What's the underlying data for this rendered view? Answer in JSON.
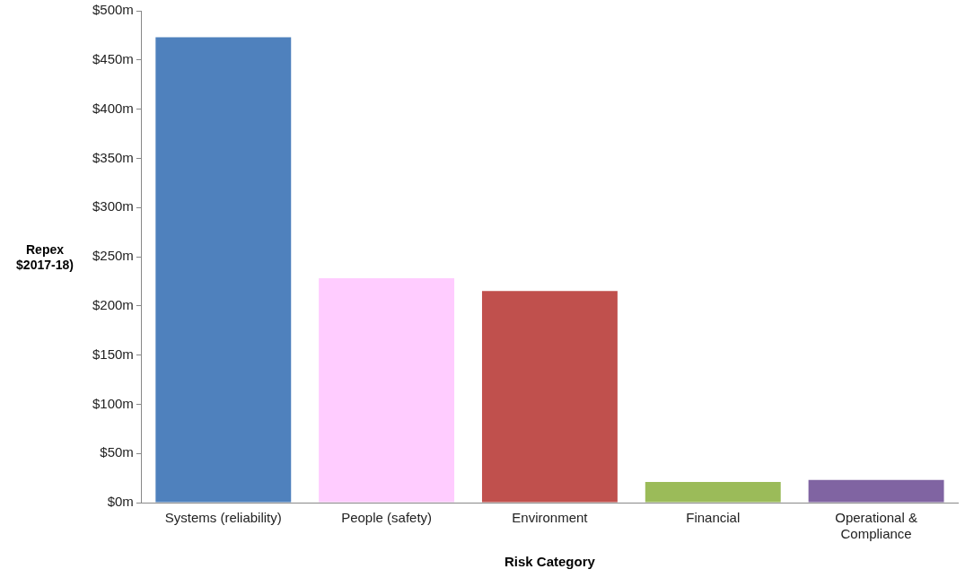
{
  "chart_data": {
    "type": "bar",
    "categories": [
      "Systems (reliability)",
      "People (safety)",
      "Environment",
      "Financial",
      "Operational & Compliance"
    ],
    "values": [
      473,
      228,
      215,
      21,
      23
    ],
    "colors": [
      "#4f81bd",
      "#ffccff",
      "#c0504d",
      "#9bbb59",
      "#8064a2"
    ],
    "xlabel": "Risk Category",
    "ylabel": "Repex\n$2017-18)",
    "ylim": [
      0,
      500
    ],
    "yticks": [
      {
        "value": 0,
        "label": "$0m"
      },
      {
        "value": 50,
        "label": "$50m"
      },
      {
        "value": 100,
        "label": "$100m"
      },
      {
        "value": 150,
        "label": "$150m"
      },
      {
        "value": 200,
        "label": "$200m"
      },
      {
        "value": 250,
        "label": "$250m"
      },
      {
        "value": 300,
        "label": "$300m"
      },
      {
        "value": 350,
        "label": "$350m"
      },
      {
        "value": 400,
        "label": "$400m"
      },
      {
        "value": 450,
        "label": "$450m"
      },
      {
        "value": 500,
        "label": "$500m"
      }
    ],
    "grid": false,
    "legend": false
  }
}
